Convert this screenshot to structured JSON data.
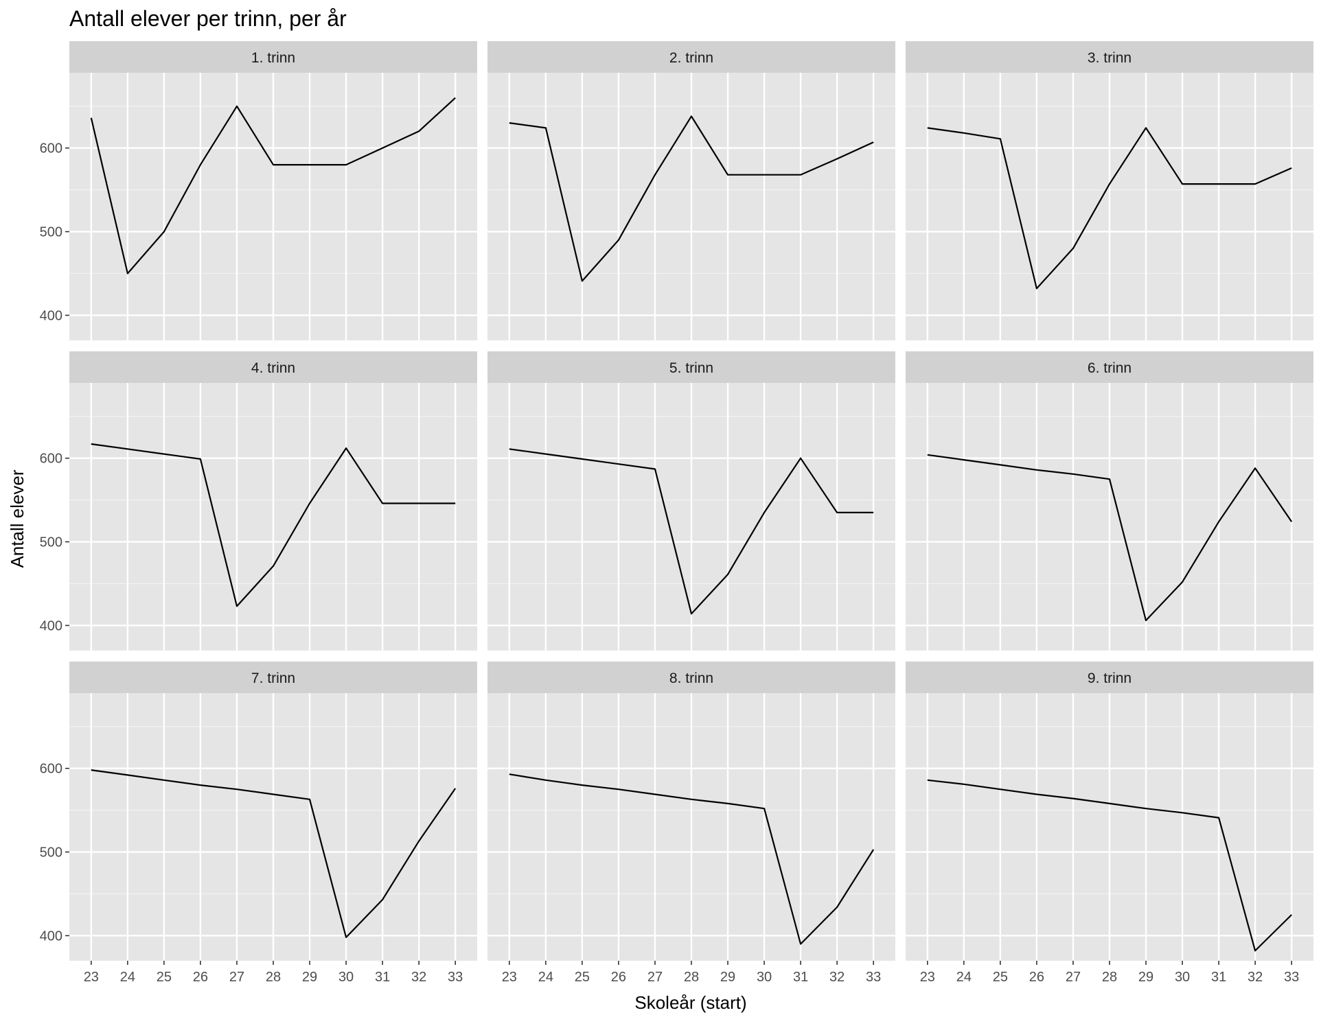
{
  "chart_data": {
    "type": "line",
    "title": "Antall elever per trinn, per år",
    "xlabel": "Skoleår (start)",
    "ylabel": "Antall elever",
    "x": [
      23,
      24,
      25,
      26,
      27,
      28,
      29,
      30,
      31,
      32,
      33
    ],
    "xlim": [
      22.4,
      33.6
    ],
    "ylim": [
      370,
      690
    ],
    "y_ticks": [
      400,
      500,
      600
    ],
    "grid": true,
    "line_color": "#000000",
    "panel_background": "#e5e5e5",
    "strip_background": "#d1d1d1",
    "facets": [
      {
        "label": "1. trinn",
        "values": [
          636,
          450,
          500,
          580,
          650,
          580,
          580,
          580,
          600,
          620,
          660
        ]
      },
      {
        "label": "2. trinn",
        "values": [
          630,
          624,
          441,
          490,
          568,
          638,
          568,
          568,
          568,
          587,
          607
        ]
      },
      {
        "label": "3. trinn",
        "values": [
          624,
          618,
          611,
          432,
          480,
          557,
          624,
          557,
          557,
          557,
          576
        ]
      },
      {
        "label": "4. trinn",
        "values": [
          617,
          611,
          605,
          599,
          423,
          471,
          546,
          612,
          546,
          546,
          546
        ]
      },
      {
        "label": "5. trinn",
        "values": [
          611,
          605,
          599,
          593,
          587,
          414,
          461,
          535,
          600,
          535,
          535
        ]
      },
      {
        "label": "6. trinn",
        "values": [
          604,
          598,
          592,
          586,
          581,
          575,
          406,
          452,
          524,
          588,
          524
        ]
      },
      {
        "label": "7. trinn",
        "values": [
          598,
          592,
          586,
          580,
          575,
          569,
          563,
          398,
          443,
          513,
          576
        ]
      },
      {
        "label": "8. trinn",
        "values": [
          593,
          586,
          580,
          575,
          569,
          563,
          558,
          552,
          390,
          434,
          503
        ]
      },
      {
        "label": "9. trinn",
        "values": [
          586,
          581,
          575,
          569,
          564,
          558,
          552,
          547,
          541,
          382,
          425
        ]
      }
    ]
  }
}
